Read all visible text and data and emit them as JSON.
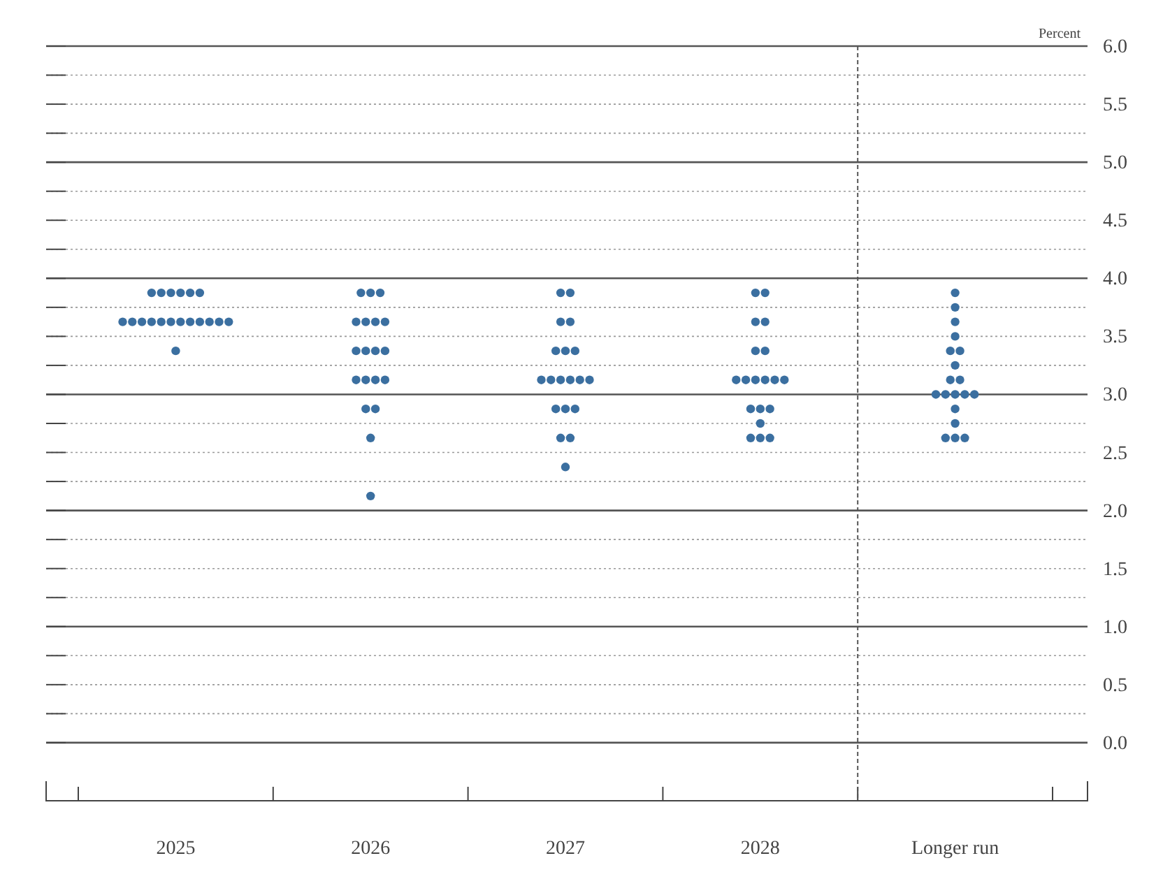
{
  "chart_data": {
    "type": "scatter",
    "categories": [
      "2025",
      "2026",
      "2027",
      "2028",
      "Longer run"
    ],
    "ylabel": "Percent",
    "ylim": [
      -0.5,
      6.0
    ],
    "yticks": [
      {
        "value": 0,
        "label": "0.0"
      },
      {
        "value": 0.25,
        "label": null
      },
      {
        "value": 0.5,
        "label": "0.5"
      },
      {
        "value": 0.75,
        "label": null
      },
      {
        "value": 1,
        "label": "1.0"
      },
      {
        "value": 1.25,
        "label": null
      },
      {
        "value": 1.5,
        "label": "1.5"
      },
      {
        "value": 1.75,
        "label": null
      },
      {
        "value": 2,
        "label": "2.0"
      },
      {
        "value": 2.25,
        "label": null
      },
      {
        "value": 2.5,
        "label": "2.5"
      },
      {
        "value": 2.75,
        "label": null
      },
      {
        "value": 3,
        "label": "3.0"
      },
      {
        "value": 3.25,
        "label": null
      },
      {
        "value": 3.5,
        "label": "3.5"
      },
      {
        "value": 3.75,
        "label": null
      },
      {
        "value": 4,
        "label": "4.0"
      },
      {
        "value": 4.25,
        "label": null
      },
      {
        "value": 4.5,
        "label": "4.5"
      },
      {
        "value": 4.75,
        "label": null
      },
      {
        "value": 5,
        "label": "5.0"
      },
      {
        "value": 5.25,
        "label": null
      },
      {
        "value": 5.5,
        "label": "5.5"
      },
      {
        "value": 5.75,
        "label": null
      },
      {
        "value": 6,
        "label": "6.0"
      }
    ],
    "grid": "y",
    "marker": "circle",
    "ref_lines": [
      {
        "axis": "x",
        "value": "Longer run",
        "line_style": "dashed",
        "color": "#555555"
      }
    ],
    "series": [
      {
        "color": "#3b6fa0",
        "values": [
          3.875,
          3.875,
          3.875,
          3.875,
          3.875
        ]
      },
      {
        "color": "#3b6fa0",
        "values": [
          3.875,
          3.875,
          3.875,
          3.875,
          3.75
        ]
      },
      {
        "color": "#3b6fa0",
        "values": [
          3.875,
          3.875,
          3.625,
          3.625,
          3.625
        ]
      },
      {
        "color": "#3b6fa0",
        "values": [
          3.875,
          3.625,
          3.625,
          3.625,
          3.5
        ]
      },
      {
        "color": "#3b6fa0",
        "values": [
          3.875,
          3.625,
          3.375,
          3.375,
          3.375
        ]
      },
      {
        "color": "#3b6fa0",
        "values": [
          3.875,
          3.625,
          3.375,
          3.375,
          3.375
        ]
      },
      {
        "color": "#3b6fa0",
        "values": [
          3.625,
          3.625,
          3.375,
          3.125,
          3.25
        ]
      },
      {
        "color": "#3b6fa0",
        "values": [
          3.625,
          3.375,
          3.125,
          3.125,
          3.125
        ]
      },
      {
        "color": "#3b6fa0",
        "values": [
          3.625,
          3.375,
          3.125,
          3.125,
          3.125
        ]
      },
      {
        "color": "#3b6fa0",
        "values": [
          3.625,
          3.375,
          3.125,
          3.125,
          3.0
        ]
      },
      {
        "color": "#3b6fa0",
        "values": [
          3.625,
          3.375,
          3.125,
          3.125,
          3.0
        ]
      },
      {
        "color": "#3b6fa0",
        "values": [
          3.625,
          3.125,
          3.125,
          3.125,
          3.0
        ]
      },
      {
        "color": "#3b6fa0",
        "values": [
          3.625,
          3.125,
          3.125,
          2.875,
          3.0
        ]
      },
      {
        "color": "#3b6fa0",
        "values": [
          3.625,
          3.125,
          2.875,
          2.875,
          3.0
        ]
      },
      {
        "color": "#3b6fa0",
        "values": [
          3.625,
          3.125,
          2.875,
          2.875,
          2.875
        ]
      },
      {
        "color": "#3b6fa0",
        "values": [
          3.625,
          2.875,
          2.875,
          2.75,
          2.75
        ]
      },
      {
        "color": "#3b6fa0",
        "values": [
          3.625,
          2.875,
          2.625,
          2.625,
          2.625
        ]
      },
      {
        "color": "#3b6fa0",
        "values": [
          3.625,
          2.625,
          2.625,
          2.625,
          2.625
        ]
      },
      {
        "color": "#3b6fa0",
        "values": [
          3.375,
          2.125,
          2.375,
          2.625,
          2.625
        ]
      }
    ]
  }
}
